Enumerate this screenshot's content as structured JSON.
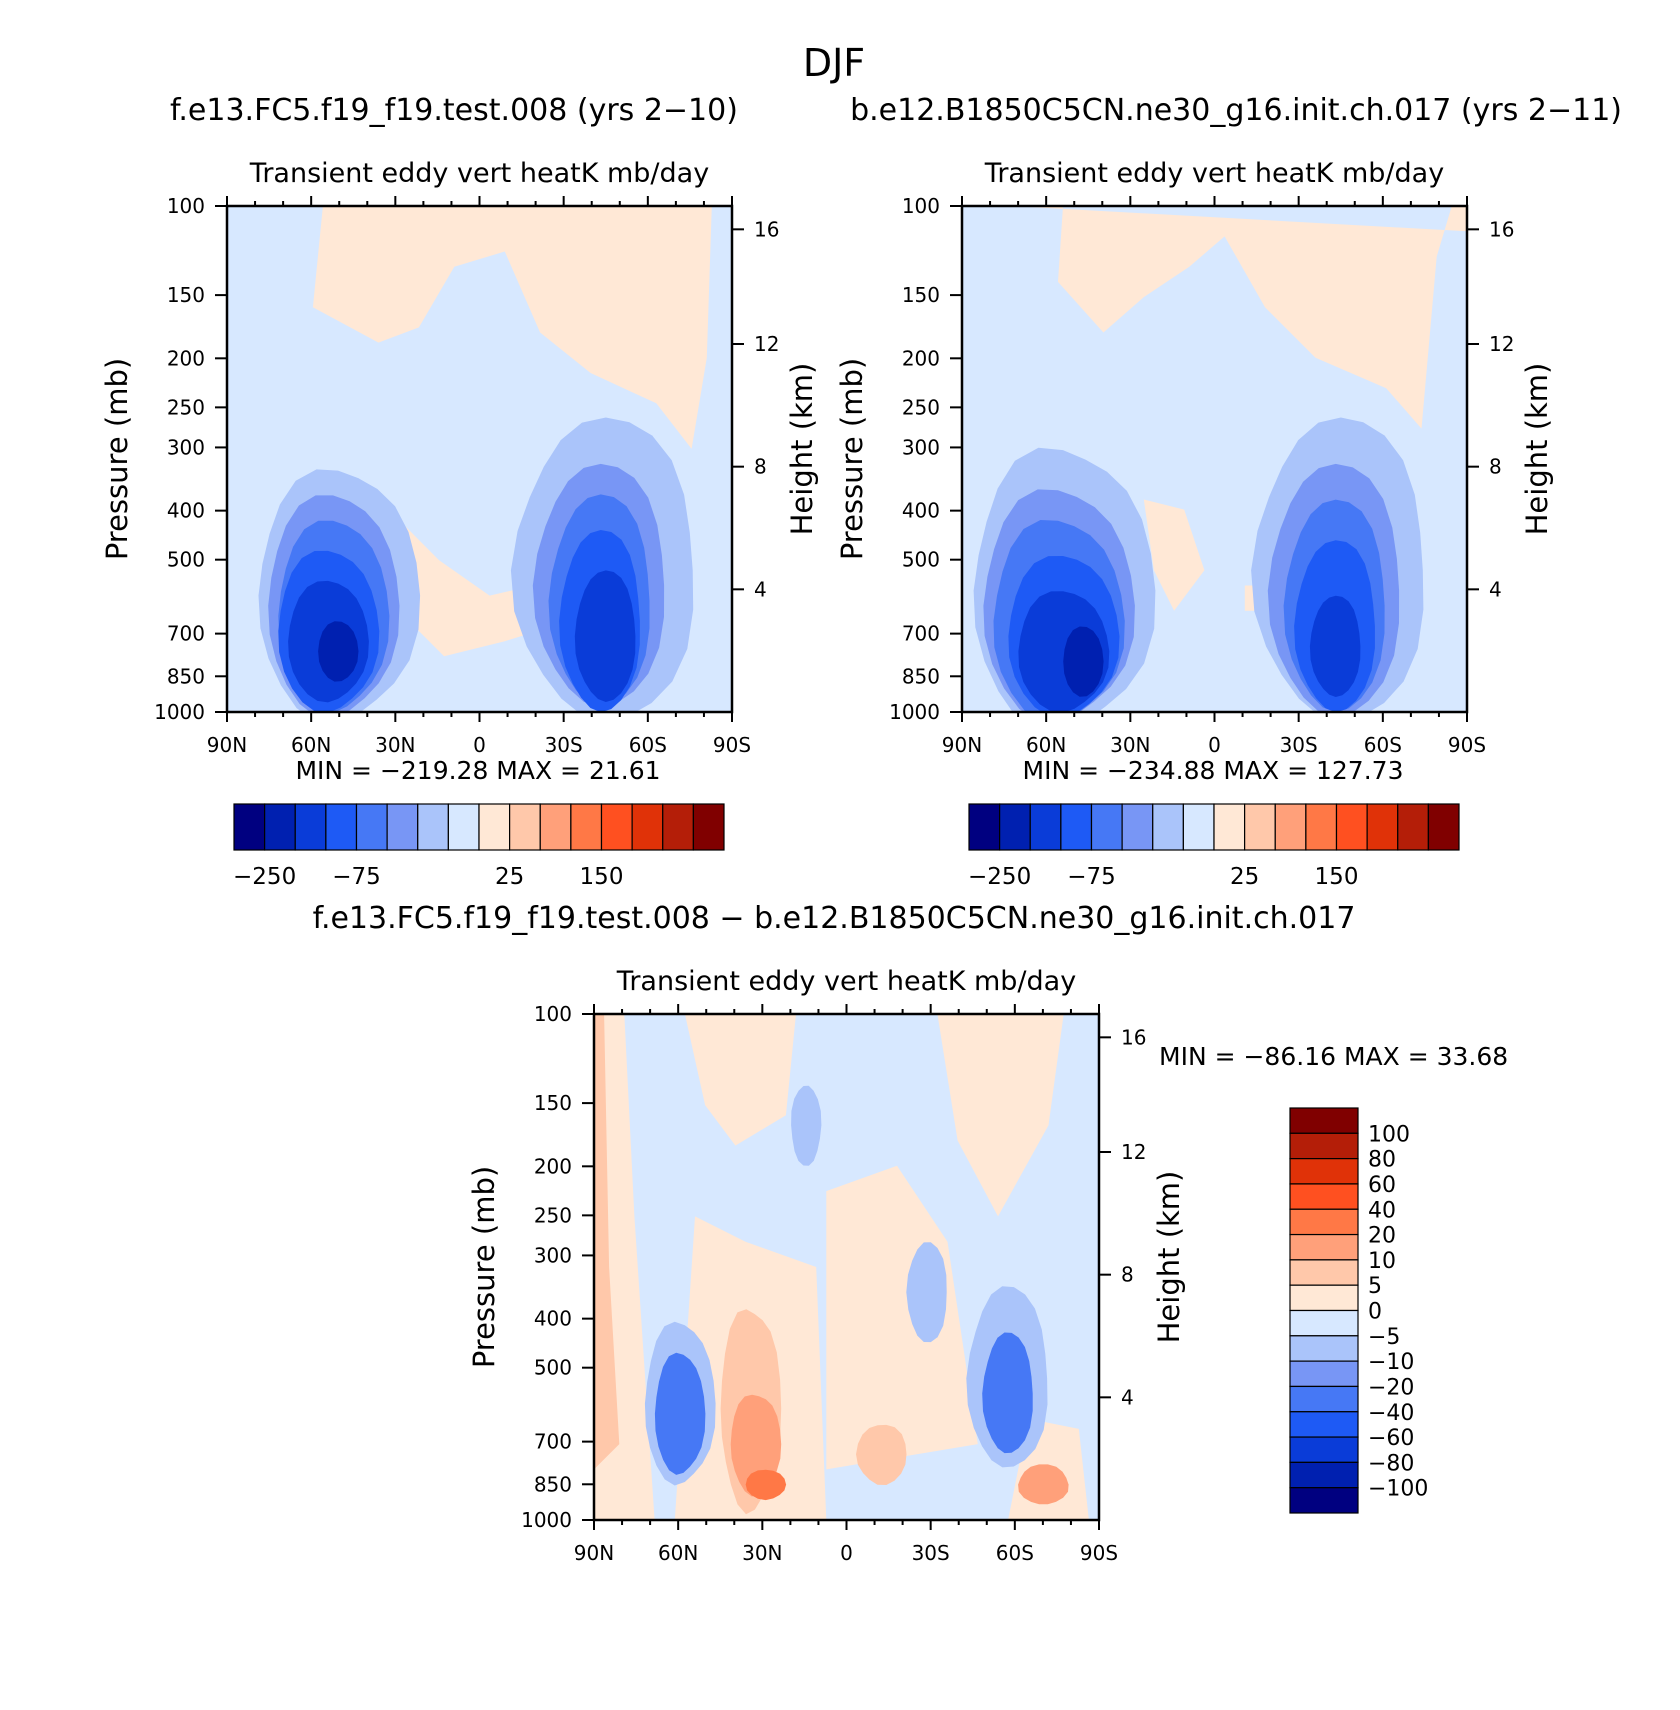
{
  "figure": {
    "title": "DJF"
  },
  "colors": {
    "main_scale": [
      "#000080",
      "#0020B0",
      "#0A3CD8",
      "#1E5AF5",
      "#4678F5",
      "#7896F5",
      "#AAC4FA",
      "#D7E8FF",
      "#FFE8D6",
      "#FFC8AA",
      "#FFA07A",
      "#FF7846",
      "#FF5020",
      "#E03208",
      "#B41E08",
      "#800000"
    ],
    "diff_scale": [
      "#000080",
      "#0020B0",
      "#0A3CD8",
      "#1E5AF5",
      "#4678F5",
      "#7896F5",
      "#AAC4FA",
      "#D7E8FF",
      "#FFE8D6",
      "#FFC8AA",
      "#FFA07A",
      "#FF7846",
      "#FF5020",
      "#E03208",
      "#B41E08",
      "#800000"
    ]
  },
  "chart_data": [
    {
      "type": "heatmap",
      "panel_title": "f.e13.FC5.f19_f19.test.008 (yrs 2−10)",
      "title": "Transient eddy vert heatK mb/day",
      "ylabel": "Pressure (mb)",
      "ylabel_right": "Height (km)",
      "x_ticks": [
        "90N",
        "60N",
        "30N",
        "0",
        "30S",
        "60S",
        "90S"
      ],
      "y_ticks": [
        "100",
        "150",
        "200",
        "250",
        "300",
        "400",
        "500",
        "700",
        "850",
        "1000"
      ],
      "y_right_ticks": [
        "16",
        "12",
        "8",
        "4"
      ],
      "ylim": [
        1000,
        100
      ],
      "stats": "MIN = −219.28   MAX =  21.61",
      "min": -219.28,
      "max": 21.61,
      "colorbar_labels": [
        "−250",
        "−75",
        "25",
        "150"
      ]
    },
    {
      "type": "heatmap",
      "panel_title": "b.e12.B1850C5CN.ne30_g16.init.ch.017 (yrs 2−11)",
      "title": "Transient eddy vert heatK mb/day",
      "ylabel": "Pressure (mb)",
      "ylabel_right": "Height (km)",
      "x_ticks": [
        "90N",
        "60N",
        "30N",
        "0",
        "30S",
        "60S",
        "90S"
      ],
      "y_ticks": [
        "100",
        "150",
        "200",
        "250",
        "300",
        "400",
        "500",
        "700",
        "850",
        "1000"
      ],
      "y_right_ticks": [
        "16",
        "12",
        "8",
        "4"
      ],
      "ylim": [
        1000,
        100
      ],
      "stats": "MIN = −234.88   MAX =  127.73",
      "min": -234.88,
      "max": 127.73,
      "colorbar_labels": [
        "−250",
        "−75",
        "25",
        "150"
      ]
    },
    {
      "type": "heatmap",
      "panel_title": "f.e13.FC5.f19_f19.test.008 − b.e12.B1850C5CN.ne30_g16.init.ch.017",
      "title": "Transient eddy vert heatK mb/day",
      "ylabel": "Pressure (mb)",
      "ylabel_right": "Height (km)",
      "x_ticks": [
        "90N",
        "60N",
        "30N",
        "0",
        "30S",
        "60S",
        "90S"
      ],
      "y_ticks": [
        "100",
        "150",
        "200",
        "250",
        "300",
        "400",
        "500",
        "700",
        "850",
        "1000"
      ],
      "y_right_ticks": [
        "16",
        "12",
        "8",
        "4"
      ],
      "ylim": [
        1000,
        100
      ],
      "stats": "MIN = −86.16   MAX =  33.68",
      "min": -86.16,
      "max": 33.68,
      "colorbar_labels": [
        "100",
        "80",
        "60",
        "40",
        "20",
        "10",
        "5",
        "0",
        "−5",
        "−10",
        "−20",
        "−40",
        "−60",
        "−80",
        "−100"
      ]
    }
  ]
}
